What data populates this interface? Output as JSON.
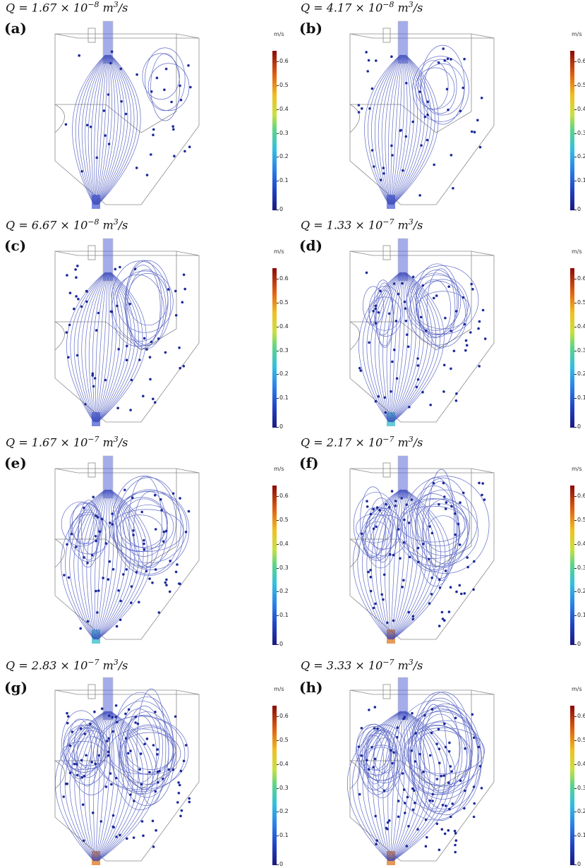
{
  "colorbar": {
    "unit": "m/s",
    "ticks": [
      "0.6",
      "0.5",
      "0.4",
      "0.3",
      "0.2",
      "0.1",
      "0"
    ]
  },
  "panels": [
    {
      "id": "a",
      "letter": "(a)",
      "q_prefix": "Q = 1.67 × 10",
      "q_exp": "−8",
      "q_unit_base": " m",
      "q_unit_exp": "3",
      "q_unit_suffix": "/s"
    },
    {
      "id": "b",
      "letter": "(b)",
      "q_prefix": "Q = 4.17 × 10",
      "q_exp": "−8",
      "q_unit_base": " m",
      "q_unit_exp": "3",
      "q_unit_suffix": "/s"
    },
    {
      "id": "c",
      "letter": "(c)",
      "q_prefix": "Q = 6.67 × 10",
      "q_exp": "−8",
      "q_unit_base": " m",
      "q_unit_exp": "3",
      "q_unit_suffix": "/s"
    },
    {
      "id": "d",
      "letter": "(d)",
      "q_prefix": "Q = 1.33 × 10",
      "q_exp": "−7",
      "q_unit_base": " m",
      "q_unit_exp": "3",
      "q_unit_suffix": "/s"
    },
    {
      "id": "e",
      "letter": "(e)",
      "q_prefix": "Q = 1.67 × 10",
      "q_exp": "−7",
      "q_unit_base": " m",
      "q_unit_exp": "3",
      "q_unit_suffix": "/s"
    },
    {
      "id": "f",
      "letter": "(f)",
      "q_prefix": "Q = 2.17 × 10",
      "q_exp": "−7",
      "q_unit_base": " m",
      "q_unit_exp": "3",
      "q_unit_suffix": "/s"
    },
    {
      "id": "g",
      "letter": "(g)",
      "q_prefix": "Q = 2.83 × 10",
      "q_exp": "−7",
      "q_unit_base": " m",
      "q_unit_exp": "3",
      "q_unit_suffix": "/s"
    },
    {
      "id": "h",
      "letter": "(h)",
      "q_prefix": "Q = 3.33 × 10",
      "q_exp": "−7",
      "q_unit_base": " m",
      "q_unit_exp": "3",
      "q_unit_suffix": "/s"
    }
  ],
  "colors": {
    "streamline": "#3a48b8",
    "arrow": "#1c2a9a",
    "outline": "#8a8a8a",
    "inlet_jet": "#5a6ad8"
  }
}
